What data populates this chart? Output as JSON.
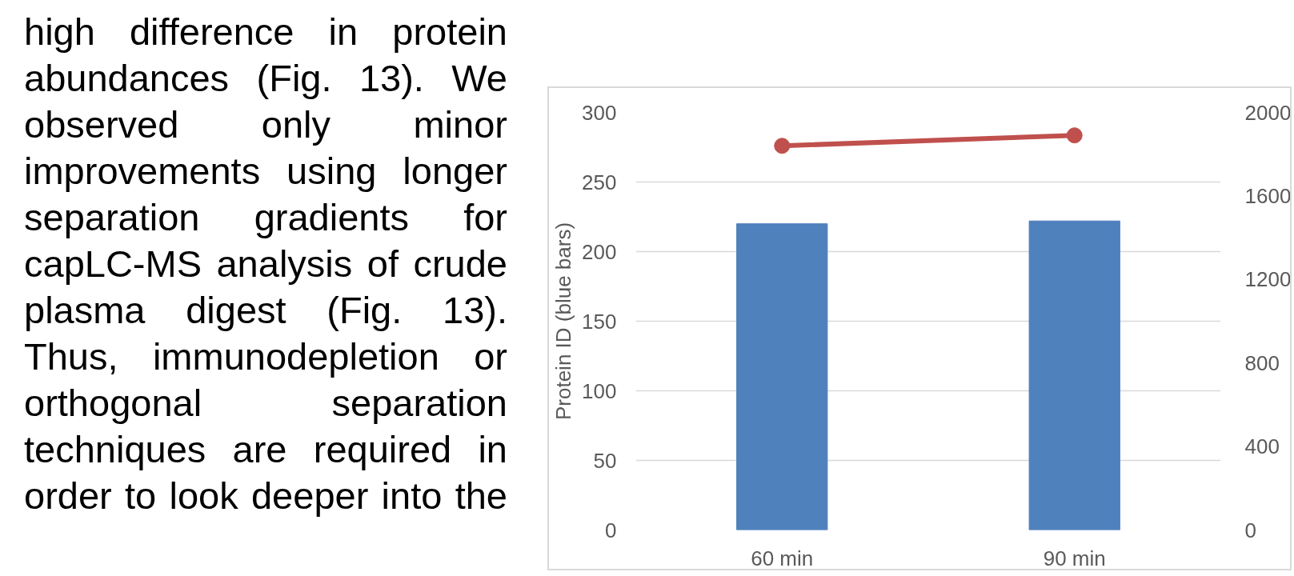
{
  "chart_data": {
    "type": "bar",
    "categories": [
      "60 min",
      "90 min"
    ],
    "ylabel": "Protein ID (blue bars)",
    "ylim": [
      0,
      300
    ],
    "yticks": [
      0,
      50,
      100,
      150,
      200,
      250,
      300
    ],
    "y2lim": [
      0,
      2000
    ],
    "y2ticks": [
      0,
      400,
      800,
      1200,
      1600,
      2000
    ],
    "grid": "y",
    "marker": "circle",
    "series": [
      {
        "color": "#4f81bd",
        "values": [
          220,
          222
        ]
      },
      {
        "type": "line",
        "axis": "y2",
        "color": "#c0504d",
        "values": [
          1840,
          1890
        ]
      }
    ],
    "annotations": [
      "high difference in protein abundances (Fig. 13). We observed only minor improvements using longer separation gradients for capLC-MS analysis of crude plasma digest (Fig. 13). Thus, immunodepletion or orthogonal separation techniques are required in order to look deeper into the"
    ]
  }
}
